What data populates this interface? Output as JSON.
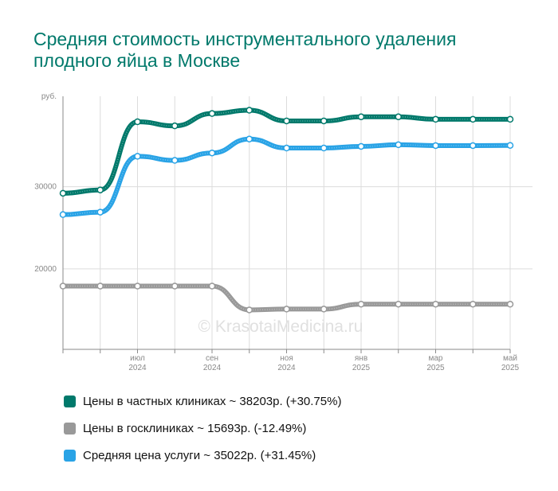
{
  "title": "Средняя стоимость инструментального удаления плодного яйца в Москве",
  "watermark": "© KrasotaiMedicina.ru",
  "chart_data": {
    "type": "line",
    "x": [
      "2024-05",
      "2024-06",
      "2024-07",
      "2024-08",
      "2024-09",
      "2024-10",
      "2024-11",
      "2024-12",
      "2025-01",
      "2025-02",
      "2025-03",
      "2025-04",
      "2025-05"
    ],
    "x_ticks": [
      {
        "month": "июл",
        "year": "2024",
        "x": "2024-07"
      },
      {
        "month": "сен",
        "year": "2024",
        "x": "2024-09"
      },
      {
        "month": "ноя",
        "year": "2024",
        "x": "2024-11"
      },
      {
        "month": "янв",
        "year": "2025",
        "x": "2025-01"
      },
      {
        "month": "мар",
        "year": "2025",
        "x": "2025-03"
      },
      {
        "month": "май",
        "year": "2025",
        "x": "2025-05"
      }
    ],
    "ylabel": "руб.",
    "y_ticks": [
      20000,
      30000
    ],
    "ylim": [
      10200,
      41000
    ],
    "grid": true,
    "series": [
      {
        "name": "Цены в частных клиниках ~ 38203р. (+30.75%)",
        "color": "#00796b",
        "values": [
          29200,
          29600,
          37900,
          37400,
          38900,
          39300,
          38000,
          38000,
          38500,
          38500,
          38200,
          38200,
          38203
        ]
      },
      {
        "name": "Цены в госклиниках ~ 15693р. (-12.49%)",
        "color": "#999999",
        "values": [
          17900,
          17900,
          17900,
          17900,
          17900,
          15000,
          15100,
          15100,
          15700,
          15700,
          15700,
          15700,
          15693
        ]
      },
      {
        "name": "Средняя цена услуги ~ 35022р. (+31.45%)",
        "color": "#29a3e6",
        "values": [
          26600,
          26900,
          33700,
          33200,
          34100,
          35800,
          34700,
          34700,
          34900,
          35100,
          35000,
          35000,
          35022
        ]
      }
    ]
  }
}
